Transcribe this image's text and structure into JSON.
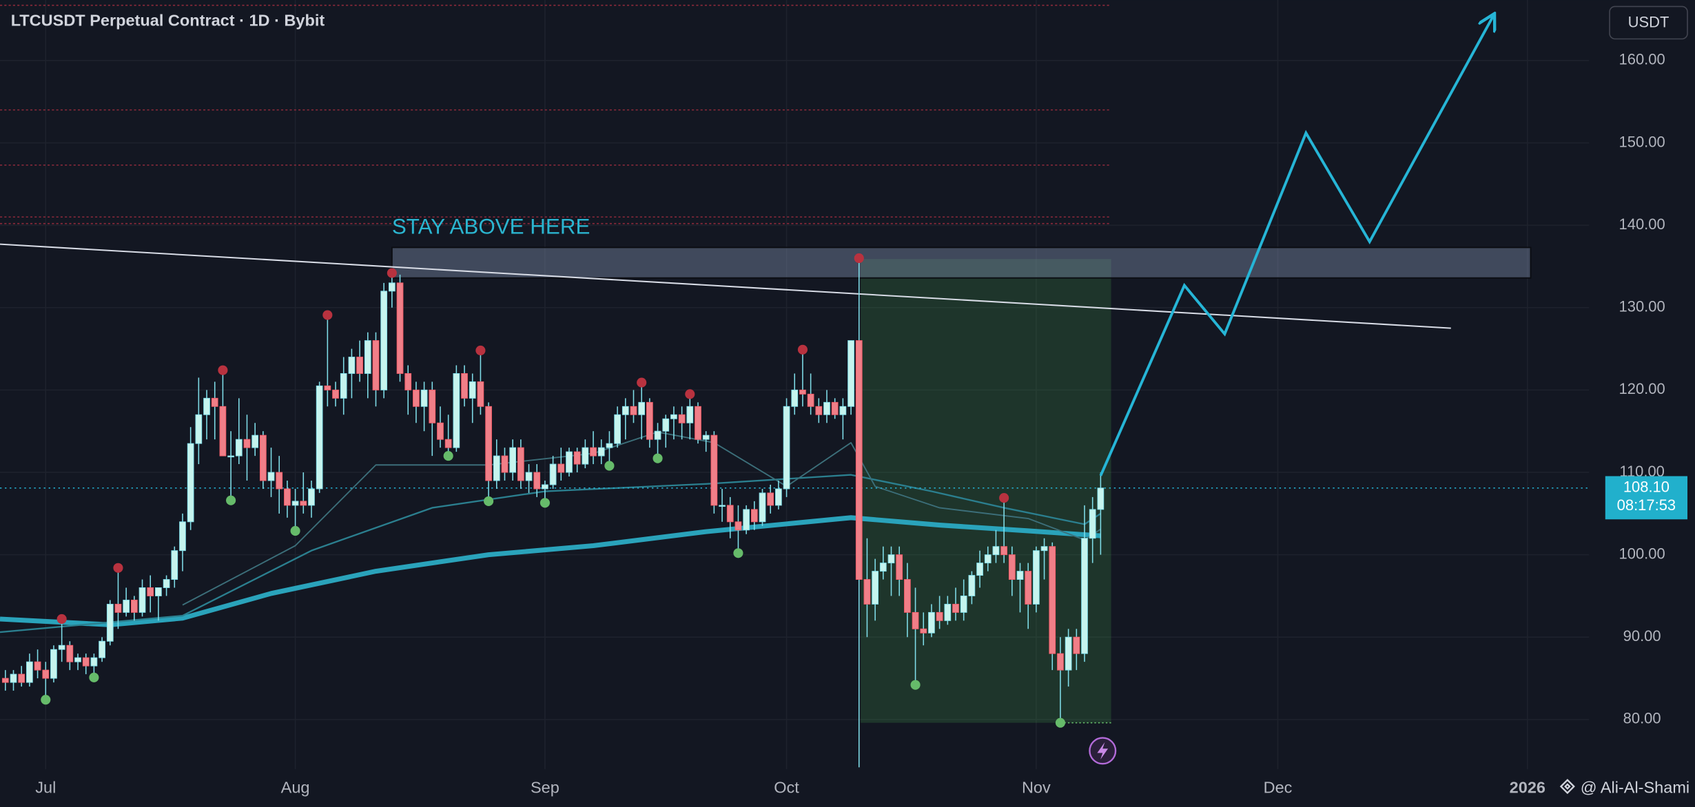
{
  "chart_data": {
    "type": "candlestick",
    "title": "LTCUSDT Perpetual Contract · 1D · Bybit",
    "currency_button": "USDT",
    "annotation": "STAY ABOVE HERE",
    "author": "@ Ali-Al-Shami",
    "up_color": "#c6f4ee",
    "down_color": "#f07f88",
    "wick_color": "#7fdde8",
    "grid": true,
    "xlim": [
      -0.67,
      196.65
    ],
    "ylim": [
      73.97,
      167.34
    ],
    "xticks": [
      {
        "value": 5,
        "label": "Jul"
      },
      {
        "value": 36,
        "label": "Aug"
      },
      {
        "value": 67,
        "label": "Sep"
      },
      {
        "value": 97,
        "label": "Oct"
      },
      {
        "value": 128,
        "label": "Nov"
      },
      {
        "value": 158,
        "label": "Dec"
      },
      {
        "value": 189,
        "label": "2026"
      }
    ],
    "yticks": [
      {
        "value": 80,
        "label": "80.00"
      },
      {
        "value": 90,
        "label": "90.00"
      },
      {
        "value": 100,
        "label": "100.00"
      },
      {
        "value": 110,
        "label": "110.00"
      },
      {
        "value": 120,
        "label": "120.00"
      },
      {
        "value": 130,
        "label": "130.00"
      },
      {
        "value": 140,
        "label": "140.00"
      },
      {
        "value": 150,
        "label": "150.00"
      },
      {
        "value": 160,
        "label": "160.00"
      }
    ],
    "ohlc": [
      [
        85,
        86,
        83.5,
        84.5
      ],
      [
        84.5,
        86,
        83.5,
        85.5
      ],
      [
        85.5,
        86.5,
        84,
        84.5
      ],
      [
        84.5,
        88,
        84,
        87
      ],
      [
        87,
        88.5,
        85,
        86
      ],
      [
        86,
        87,
        82.4,
        85
      ],
      [
        85,
        89,
        84.5,
        88.5
      ],
      [
        88.5,
        92.2,
        87,
        89
      ],
      [
        89,
        89.5,
        86,
        87
      ],
      [
        87,
        88,
        86,
        87.5
      ],
      [
        87.5,
        88,
        85.5,
        86.5
      ],
      [
        86.5,
        88,
        85.1,
        87.5
      ],
      [
        87.5,
        90,
        87,
        89.5
      ],
      [
        89.5,
        94.5,
        89,
        94
      ],
      [
        94,
        98.4,
        91,
        93
      ],
      [
        93,
        96,
        92.5,
        94.5
      ],
      [
        94.5,
        95,
        92,
        93
      ],
      [
        93,
        97,
        92.5,
        96
      ],
      [
        96,
        97.5,
        93,
        95
      ],
      [
        95,
        96,
        92,
        96
      ],
      [
        96,
        97.5,
        95,
        97
      ],
      [
        97,
        101,
        96,
        100.5
      ],
      [
        100.5,
        105,
        98,
        104
      ],
      [
        104,
        115.5,
        103,
        113.5
      ],
      [
        113.5,
        121.5,
        111,
        117
      ],
      [
        117,
        120,
        114,
        119
      ],
      [
        119,
        121,
        114,
        118
      ],
      [
        118,
        122.4,
        112,
        112
      ],
      [
        112,
        115,
        106.6,
        112
      ],
      [
        112,
        119,
        111,
        114
      ],
      [
        114,
        117,
        109,
        113
      ],
      [
        113,
        116,
        112,
        114.5
      ],
      [
        114.5,
        115,
        108,
        109
      ],
      [
        109,
        113,
        107,
        110
      ],
      [
        110,
        112,
        105,
        108
      ],
      [
        108,
        109,
        104.5,
        106
      ],
      [
        106,
        108,
        102.9,
        106.5
      ],
      [
        106.5,
        110,
        105,
        106
      ],
      [
        106,
        109,
        104.5,
        108
      ],
      [
        108,
        121,
        107.5,
        120.5
      ],
      [
        120.5,
        129.1,
        118,
        120
      ],
      [
        120,
        121,
        118,
        119
      ],
      [
        119,
        124,
        117,
        122
      ],
      [
        122,
        125,
        119,
        124
      ],
      [
        124,
        126,
        121,
        122
      ],
      [
        122,
        127,
        119,
        126
      ],
      [
        126,
        127,
        118,
        120
      ],
      [
        120,
        133,
        119,
        132
      ],
      [
        132,
        134.2,
        130,
        133
      ],
      [
        133,
        134,
        121,
        122
      ],
      [
        122,
        123,
        117,
        120
      ],
      [
        120,
        121,
        116,
        118
      ],
      [
        118,
        121,
        115,
        120
      ],
      [
        120,
        121,
        112,
        116
      ],
      [
        116,
        118,
        113,
        114
      ],
      [
        114,
        117,
        112,
        113
      ],
      [
        113,
        123,
        112.5,
        122
      ],
      [
        122,
        123,
        118,
        119
      ],
      [
        119,
        122,
        116,
        121
      ],
      [
        121,
        124.8,
        117,
        118
      ],
      [
        118,
        118.5,
        106.5,
        109
      ],
      [
        109,
        114,
        108,
        112
      ],
      [
        112,
        113,
        109,
        110
      ],
      [
        110,
        114,
        109,
        113
      ],
      [
        113,
        114,
        108,
        109
      ],
      [
        109,
        111,
        107.5,
        110
      ],
      [
        110,
        111,
        107,
        108
      ],
      [
        108,
        109,
        106.3,
        108.5
      ],
      [
        108.5,
        112,
        108,
        111
      ],
      [
        111,
        113,
        109,
        110
      ],
      [
        110,
        113,
        109.5,
        112.5
      ],
      [
        112.5,
        113,
        110,
        111
      ],
      [
        111,
        114,
        110.5,
        113
      ],
      [
        113,
        115,
        111,
        112
      ],
      [
        112,
        114,
        111,
        113
      ],
      [
        113,
        115,
        110.8,
        113.5
      ],
      [
        113.5,
        118,
        113,
        117
      ],
      [
        117,
        119,
        114,
        118
      ],
      [
        118,
        120,
        116,
        117
      ],
      [
        117,
        120.9,
        114,
        118.5
      ],
      [
        118.5,
        119,
        113,
        114
      ],
      [
        114,
        116,
        111.7,
        115
      ],
      [
        115,
        117,
        113,
        116.5
      ],
      [
        116.5,
        118,
        114,
        117
      ],
      [
        117,
        118,
        114,
        116
      ],
      [
        116,
        119.5,
        114,
        118
      ],
      [
        118,
        118.5,
        113.5,
        114
      ],
      [
        114,
        115,
        112.5,
        114.5
      ],
      [
        114.5,
        115,
        105,
        106
      ],
      [
        106,
        108,
        104,
        106
      ],
      [
        106,
        107,
        102,
        104
      ],
      [
        104,
        106,
        100.2,
        103
      ],
      [
        103,
        106,
        102.5,
        105.5
      ],
      [
        105.5,
        106.5,
        103,
        104
      ],
      [
        104,
        108,
        103.5,
        107.5
      ],
      [
        107.5,
        108.5,
        105,
        106
      ],
      [
        106,
        109,
        105.5,
        108
      ],
      [
        108,
        119,
        107,
        118
      ],
      [
        118,
        122,
        117,
        120
      ],
      [
        120,
        124.9,
        118,
        119.5
      ],
      [
        119.5,
        122,
        117,
        118
      ],
      [
        118,
        119,
        116,
        117
      ],
      [
        117,
        120,
        116,
        118.5
      ],
      [
        118.5,
        119,
        116.5,
        117
      ],
      [
        117,
        119,
        114,
        118
      ],
      [
        118,
        126,
        117,
        126
      ],
      [
        126,
        136,
        74.2,
        97
      ],
      [
        97,
        102,
        90,
        94
      ],
      [
        94,
        99.5,
        92,
        98
      ],
      [
        98,
        101,
        97,
        99
      ],
      [
        99,
        101,
        95,
        100
      ],
      [
        100,
        101,
        95,
        97
      ],
      [
        97,
        99,
        90,
        93
      ],
      [
        93,
        96,
        84.2,
        91
      ],
      [
        91,
        93,
        89,
        90.5
      ],
      [
        90.5,
        94,
        90,
        93
      ],
      [
        93,
        95,
        91,
        92
      ],
      [
        92,
        95,
        91.5,
        94
      ],
      [
        94,
        96,
        92,
        93
      ],
      [
        93,
        97,
        92,
        95
      ],
      [
        95,
        98,
        94,
        97.5
      ],
      [
        97.5,
        100.5,
        96,
        99
      ],
      [
        99,
        101,
        98,
        100
      ],
      [
        100,
        103,
        99,
        101
      ],
      [
        101,
        106.9,
        99,
        100
      ],
      [
        100,
        101,
        95,
        97
      ],
      [
        97,
        99,
        93,
        98
      ],
      [
        98,
        99,
        91,
        94
      ],
      [
        94,
        101,
        93,
        100.5
      ],
      [
        100.5,
        102,
        97,
        101
      ],
      [
        101,
        101.5,
        86,
        88
      ],
      [
        88,
        90,
        79.6,
        86
      ],
      [
        86,
        91,
        84,
        90
      ],
      [
        90,
        91,
        86,
        88
      ],
      [
        88,
        106,
        87,
        102
      ],
      [
        102,
        107,
        99,
        105.5
      ],
      [
        105.5,
        110,
        100,
        108.1
      ]
    ],
    "moving_averages": [
      {
        "color": "#2aa3bb",
        "x": [
          -0.67,
          13,
          22,
          33,
          46,
          60,
          73,
          87,
          105,
          116,
          127,
          136
        ],
        "values": [
          92.2,
          91.5,
          92.3,
          95.3,
          98,
          100,
          101.1,
          102.8,
          104.5,
          103.6,
          102.9,
          102.3
        ]
      },
      {
        "color": "#2b7f8f",
        "x": [
          -0.67,
          22,
          38,
          53,
          67,
          87,
          105,
          115,
          124,
          134,
          136
        ],
        "values": [
          90.6,
          92.6,
          100.5,
          105.7,
          107.7,
          108.6,
          109.7,
          107.7,
          105.7,
          103.7,
          105
        ]
      },
      {
        "color": "#3c6f7a",
        "x": [
          22,
          36,
          46,
          60,
          73,
          81,
          88,
          97,
          105,
          108,
          116,
          127,
          134,
          136
        ],
        "values": [
          93.9,
          101.1,
          110.9,
          110.9,
          112.3,
          114.9,
          113.6,
          108.3,
          113.6,
          108.3,
          105.7,
          104.4,
          101.8,
          103.1
        ]
      }
    ],
    "pivot_highs": {
      "color": "#b8323f",
      "x": [
        7,
        14,
        27,
        40,
        48,
        59,
        79,
        85,
        99,
        106,
        124
      ],
      "values": [
        92.2,
        98.4,
        122.4,
        129.1,
        134.2,
        124.8,
        120.9,
        119.5,
        124.9,
        136,
        106.9
      ]
    },
    "pivot_lows": {
      "color": "#66bb6a",
      "x": [
        5,
        11,
        28,
        36,
        55,
        60,
        67,
        75,
        81,
        91,
        113,
        131
      ],
      "values": [
        82.4,
        85.1,
        106.6,
        102.9,
        112,
        106.5,
        106.3,
        110.8,
        111.7,
        100.2,
        84.2,
        79.6
      ]
    },
    "zone": {
      "x": [
        48,
        189.4
      ],
      "y": [
        133.6,
        137.3
      ]
    },
    "trendline": {
      "x": [
        -0.67,
        179.5
      ],
      "y": [
        137.7,
        127.5
      ]
    },
    "position_box": {
      "x": [
        106.2,
        137.3
      ],
      "y": [
        79.6,
        135.9
      ]
    },
    "levels": [
      166.7,
      154,
      147.3,
      141,
      140.2
    ],
    "projection": {
      "color": "#26b5d6",
      "x": [
        136,
        146.4,
        151.4,
        161.5,
        169.4,
        184.8
      ],
      "values": [
        109.6,
        132.7,
        126.8,
        151.2,
        138,
        165.5
      ]
    },
    "last_price": {
      "value": 108.1,
      "label": "108.10"
    },
    "countdown": "08:17:53"
  }
}
